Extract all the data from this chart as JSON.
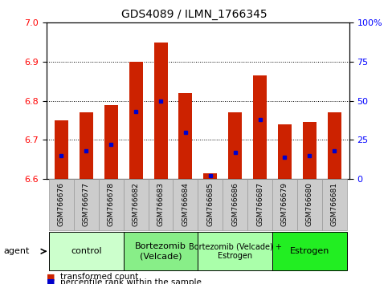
{
  "title": "GDS4089 / ILMN_1766345",
  "samples": [
    "GSM766676",
    "GSM766677",
    "GSM766678",
    "GSM766682",
    "GSM766683",
    "GSM766684",
    "GSM766685",
    "GSM766686",
    "GSM766687",
    "GSM766679",
    "GSM766680",
    "GSM766681"
  ],
  "transformed_counts": [
    6.75,
    6.77,
    6.79,
    6.9,
    6.95,
    6.82,
    6.615,
    6.77,
    6.865,
    6.74,
    6.745,
    6.77
  ],
  "percentile_ranks": [
    15,
    18,
    22,
    43,
    50,
    30,
    2,
    17,
    38,
    14,
    15,
    18
  ],
  "ylim_left": [
    6.6,
    7.0
  ],
  "ylim_right": [
    0,
    100
  ],
  "yticks_left": [
    6.6,
    6.7,
    6.8,
    6.9,
    7.0
  ],
  "yticks_right": [
    0,
    25,
    50,
    75,
    100
  ],
  "groups": [
    {
      "label": "control",
      "indices": [
        0,
        1,
        2
      ],
      "color": "#ccffcc",
      "fontsize": 8
    },
    {
      "label": "Bortezomib\n(Velcade)",
      "indices": [
        3,
        4,
        5
      ],
      "color": "#88ee88",
      "fontsize": 8
    },
    {
      "label": "Bortezomib (Velcade) +\nEstrogen",
      "indices": [
        6,
        7,
        8
      ],
      "color": "#aaffaa",
      "fontsize": 7
    },
    {
      "label": "Estrogen",
      "indices": [
        9,
        10,
        11
      ],
      "color": "#22ee22",
      "fontsize": 8
    }
  ],
  "bar_color": "#cc2200",
  "percentile_color": "#0000cc",
  "bar_width": 0.55,
  "background_color": "#ffffff",
  "tick_label_fontsize": 6.5,
  "title_fontsize": 10,
  "legend_fontsize": 7.5,
  "legend_items": [
    {
      "color": "#cc2200",
      "label": "transformed count"
    },
    {
      "color": "#0000cc",
      "label": "percentile rank within the sample"
    }
  ],
  "gridline_values": [
    6.7,
    6.8,
    6.9
  ],
  "left_tick_color": "red",
  "right_tick_color": "blue"
}
